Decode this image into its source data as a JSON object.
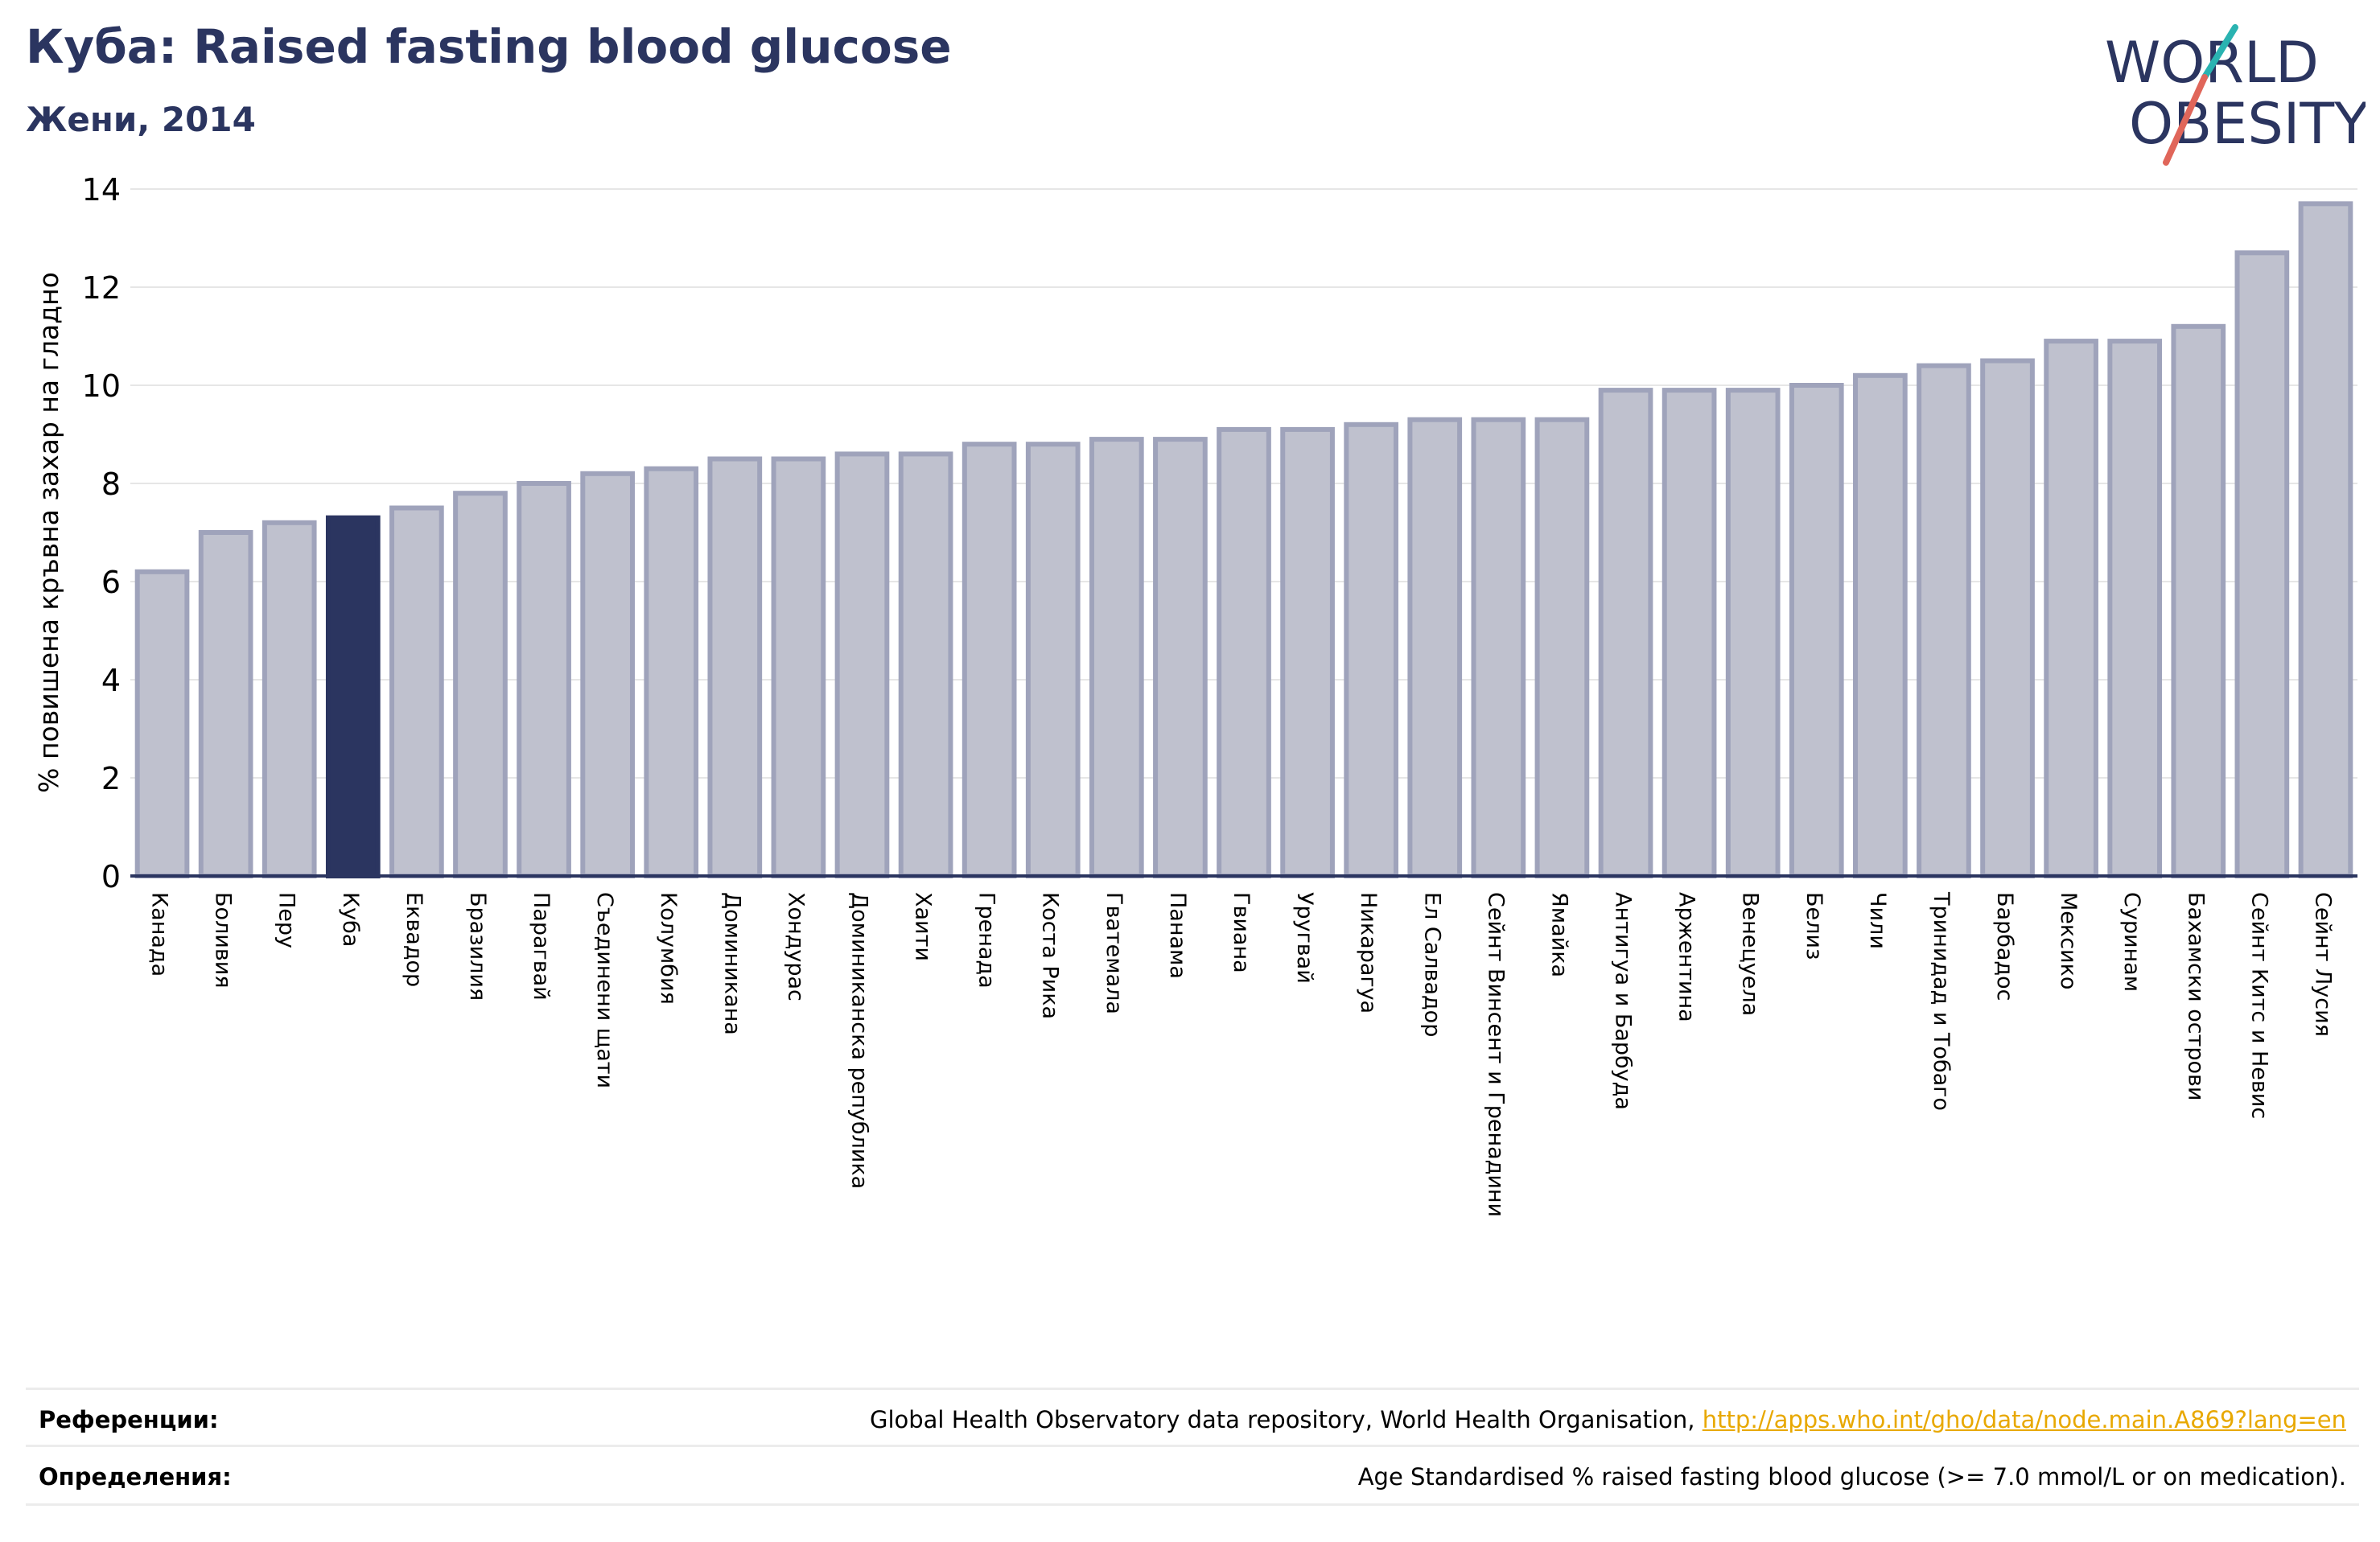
{
  "header": {
    "title": "Куба: Raised fasting blood glucose",
    "subtitle": "Жени, 2014"
  },
  "logo": {
    "line1": "WORLD",
    "line2": "OBESITY",
    "colors": {
      "text": "#2b3560",
      "slash_teal": "#2ab3b1",
      "slash_red": "#e0665a"
    }
  },
  "colors": {
    "bar_fill": "#bfc1ce",
    "bar_stroke": "#9fa3bb",
    "highlight_fill": "#2b3560",
    "axis": "#2b3560",
    "grid": "#e6e6e6",
    "link": "#e8a800"
  },
  "chart_data": {
    "type": "bar",
    "title": "Куба: Raised fasting blood glucose",
    "subtitle": "Жени, 2014",
    "ylabel": "% повишена кръвна захар на гладно",
    "ylim": [
      0,
      14
    ],
    "yticks": [
      0,
      2,
      4,
      6,
      8,
      10,
      12,
      14
    ],
    "grid": true,
    "highlight": "Куба",
    "categories": [
      "Канада",
      "Боливия",
      "Перу",
      "Куба",
      "Еквадор",
      "Бразилия",
      "Парагвай",
      "Съединени щати",
      "Колумбия",
      "Доминикана",
      "Хондурас",
      "Доминиканска република",
      "Хаити",
      "Гренада",
      "Коста Рика",
      "Гватемала",
      "Панама",
      "Гвиана",
      "Уругвай",
      "Никарагуа",
      "Ел Салвадор",
      "Сейнт Винсент и Гренадини",
      "Ямайка",
      "Антигуа и Барбуда",
      "Аржентина",
      "Венецуела",
      "Белиз",
      "Чили",
      "Тринидад и Тобаго",
      "Барбадос",
      "Мексико",
      "Суринам",
      "Бахамски острови",
      "Сейнт Китс и Невис",
      "Сейнт Лусия"
    ],
    "values": [
      6.2,
      7.0,
      7.2,
      7.3,
      7.5,
      7.8,
      8.0,
      8.2,
      8.3,
      8.5,
      8.5,
      8.6,
      8.6,
      8.8,
      8.8,
      8.9,
      8.9,
      9.1,
      9.1,
      9.2,
      9.3,
      9.3,
      9.3,
      9.9,
      9.9,
      9.9,
      10.0,
      10.2,
      10.4,
      10.5,
      10.9,
      10.9,
      11.2,
      12.7,
      13.7
    ]
  },
  "footer": {
    "references_label": "Референции:",
    "references_text": "Global Health Observatory data repository, World Health Organisation, ",
    "references_link": "http://apps.who.int/gho/data/node.main.A869?lang=en",
    "definitions_label": "Определения:",
    "definitions_text": "Age Standardised % raised fasting blood glucose (>= 7.0 mmol/L or on medication)."
  }
}
